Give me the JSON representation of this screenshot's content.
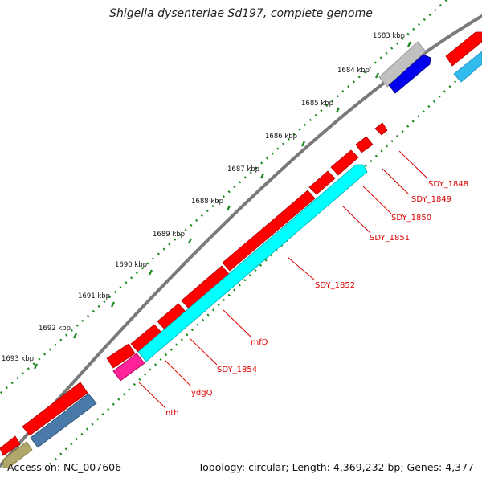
{
  "title": "Shigella dysenteriae Sd197, complete genome",
  "footer": {
    "accession": "Accession: NC_007606",
    "summary": "Topology: circular; Length: 4,369,232 bp; Genes: 4,377"
  },
  "ticks": [
    "1683 kbp",
    "1684 kbp",
    "1685 kbp",
    "1686 kbp",
    "1687 kbp",
    "1688 kbp",
    "1689 kbp",
    "1690 kbp",
    "1691 kbp",
    "1692 kbp",
    "1693 kbp"
  ],
  "gene_labels": [
    "SDY_1848",
    "SDY_1849",
    "SDY_1850",
    "SDY_1851",
    "SDY_1852",
    "rnfD",
    "SDY_1854",
    "ydgQ",
    "nth"
  ],
  "colors": {
    "backbone": "#777777",
    "tick_dots": "#1e8a1e",
    "forward_cds": "#ff0000",
    "reverse_cds": "#00ffff",
    "label": "#dd0000",
    "grey_feature": "#bbbbbb",
    "blue_feature": "#0000ee",
    "steelblue_feature": "#4a7aaa",
    "magenta_feature": "#ff2299",
    "olive_feature": "#aaa060",
    "light_blue_feature": "#33bbee"
  }
}
